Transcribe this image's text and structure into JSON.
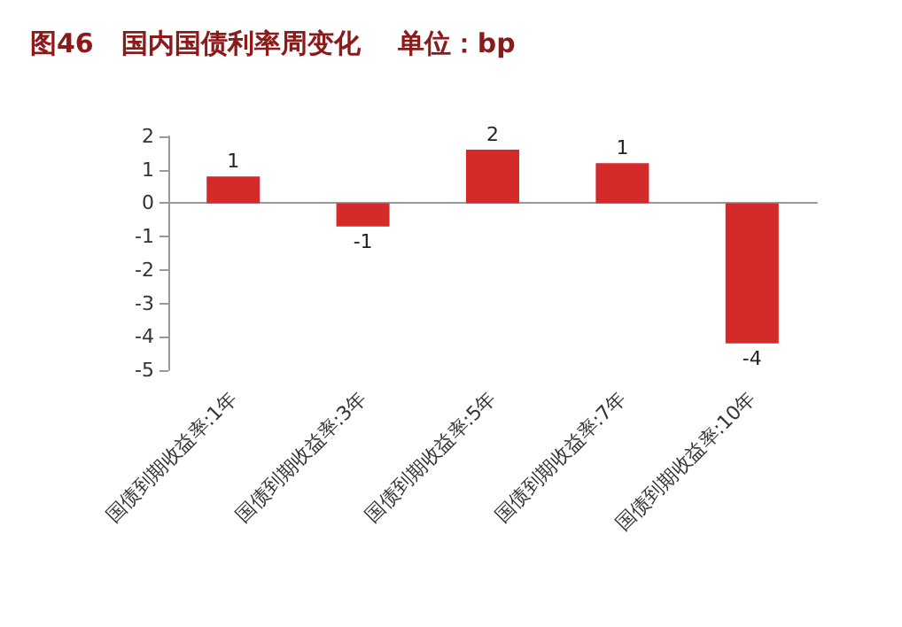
{
  "chart_data": {
    "type": "bar",
    "title": "图46   国内国债利率周变化    单位：bp",
    "categories": [
      "国债到期收益率:1年",
      "国债到期收益率:3年",
      "国债到期收益率:5年",
      "国债到期收益率:7年",
      "国债到期收益率:10年"
    ],
    "values": [
      0.8,
      -0.7,
      1.6,
      1.2,
      -4.2
    ],
    "value_labels": [
      "1",
      "-1",
      "2",
      "1",
      "-4"
    ],
    "color": "#d42a2a",
    "ylim": [
      -5,
      2
    ],
    "yticks": [
      -5,
      -4,
      -3,
      -2,
      -1,
      0,
      1,
      2
    ]
  }
}
